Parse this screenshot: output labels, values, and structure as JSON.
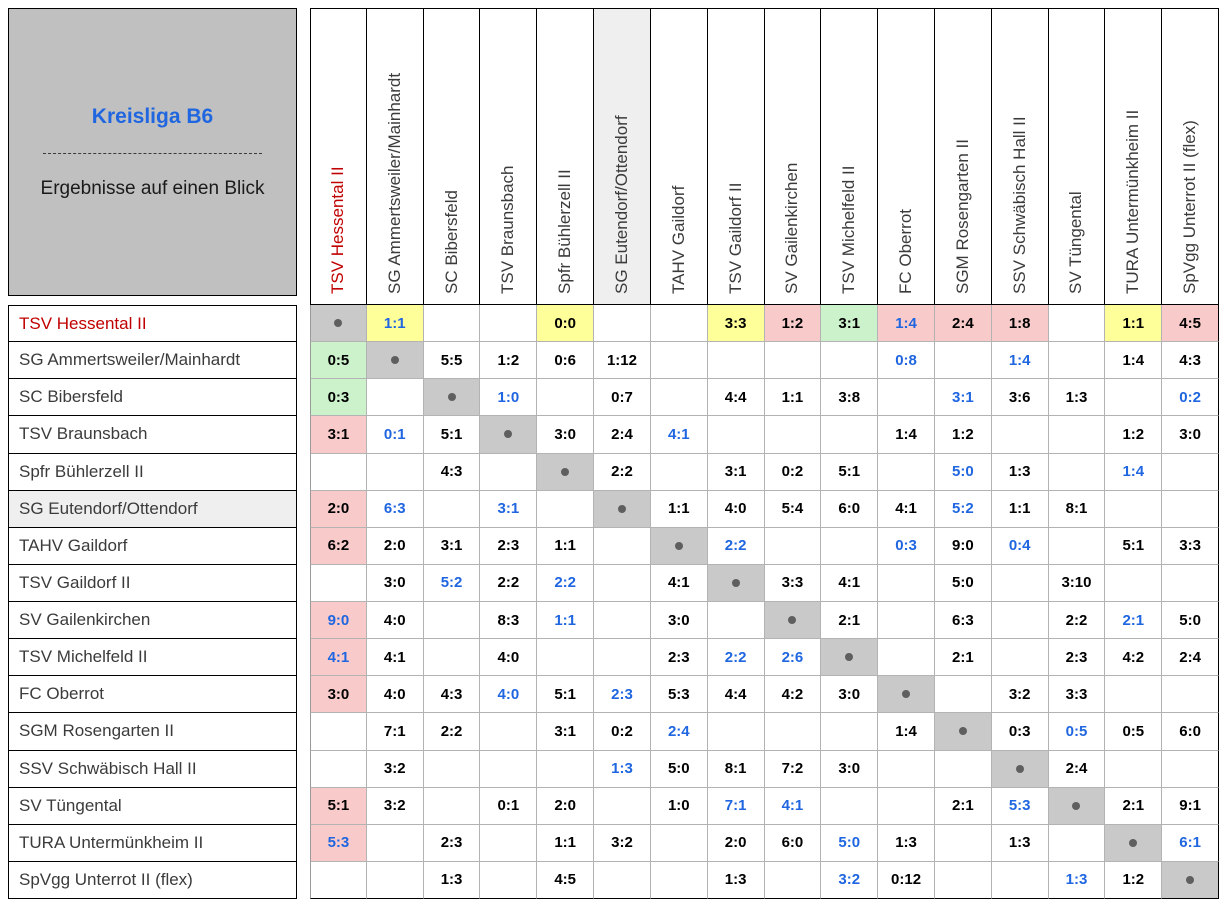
{
  "title_box": {
    "title": "Kreisliga B6",
    "subtitle": "Ergebnisse auf einen Blick"
  },
  "selected_team": "TSV Hessental II",
  "diag_dot": "•",
  "colors": {
    "accent_blue": "#1f66e0",
    "team_red": "#c00000",
    "draw_yellow": "#feff99",
    "win_green": "#ccf2cc",
    "loss_pink": "#f8caca",
    "diag_gray": "#c9c9c9",
    "header_gray": "#c0c0c0",
    "shade_gray": "#efefef"
  },
  "teams": [
    {
      "name": "TSV Hessental II",
      "flag": "sel"
    },
    {
      "name": "SG Ammertsweiler/Mainhardt",
      "flag": ""
    },
    {
      "name": "SC Bibersfeld",
      "flag": ""
    },
    {
      "name": "TSV Braunsbach",
      "flag": ""
    },
    {
      "name": "Spfr Bühlerzell II",
      "flag": ""
    },
    {
      "name": "SG Eutendorf/Ottendorf",
      "flag": "shade"
    },
    {
      "name": "TAHV Gaildorf",
      "flag": ""
    },
    {
      "name": "TSV Gaildorf II",
      "flag": ""
    },
    {
      "name": "SV Gailenkirchen",
      "flag": ""
    },
    {
      "name": "TSV Michelfeld II",
      "flag": ""
    },
    {
      "name": "FC Oberrot",
      "flag": ""
    },
    {
      "name": "SGM Rosengarten II",
      "flag": ""
    },
    {
      "name": "SSV Schwäbisch Hall II",
      "flag": ""
    },
    {
      "name": "SV Tüngental",
      "flag": ""
    },
    {
      "name": "TURA Untermünkheim II",
      "flag": ""
    },
    {
      "name": "SpVgg Unterrot II (flex)",
      "flag": ""
    }
  ],
  "matrix": [
    [
      {
        "d": 1
      },
      {
        "s": "1:1",
        "bg": "y",
        "fg": "b"
      },
      null,
      null,
      {
        "s": "0:0",
        "bg": "y"
      },
      null,
      null,
      {
        "s": "3:3",
        "bg": "y"
      },
      {
        "s": "1:2",
        "bg": "p"
      },
      {
        "s": "3:1",
        "bg": "g"
      },
      {
        "s": "1:4",
        "bg": "p",
        "fg": "b"
      },
      {
        "s": "2:4",
        "bg": "p"
      },
      {
        "s": "1:8",
        "bg": "p"
      },
      null,
      {
        "s": "1:1",
        "bg": "y"
      },
      {
        "s": "4:5",
        "bg": "p"
      }
    ],
    [
      {
        "s": "0:5",
        "bg": "g"
      },
      {
        "d": 1
      },
      {
        "s": "5:5"
      },
      {
        "s": "1:2"
      },
      {
        "s": "0:6"
      },
      {
        "s": "1:12"
      },
      null,
      null,
      null,
      null,
      {
        "s": "0:8",
        "fg": "b"
      },
      null,
      {
        "s": "1:4",
        "fg": "b"
      },
      null,
      {
        "s": "1:4"
      },
      {
        "s": "4:3"
      }
    ],
    [
      {
        "s": "0:3",
        "bg": "g"
      },
      null,
      {
        "d": 1
      },
      {
        "s": "1:0",
        "fg": "b"
      },
      null,
      {
        "s": "0:7"
      },
      null,
      {
        "s": "4:4"
      },
      {
        "s": "1:1"
      },
      {
        "s": "3:8"
      },
      null,
      {
        "s": "3:1",
        "fg": "b"
      },
      {
        "s": "3:6"
      },
      {
        "s": "1:3"
      },
      null,
      {
        "s": "0:2",
        "fg": "b"
      }
    ],
    [
      {
        "s": "3:1",
        "bg": "p"
      },
      {
        "s": "0:1",
        "fg": "b"
      },
      {
        "s": "5:1"
      },
      {
        "d": 1
      },
      {
        "s": "3:0"
      },
      {
        "s": "2:4"
      },
      {
        "s": "4:1",
        "fg": "b"
      },
      null,
      null,
      null,
      {
        "s": "1:4"
      },
      {
        "s": "1:2"
      },
      null,
      null,
      {
        "s": "1:2"
      },
      {
        "s": "3:0"
      }
    ],
    [
      null,
      null,
      {
        "s": "4:3"
      },
      null,
      {
        "d": 1
      },
      {
        "s": "2:2"
      },
      null,
      {
        "s": "3:1"
      },
      {
        "s": "0:2"
      },
      {
        "s": "5:1"
      },
      null,
      {
        "s": "5:0",
        "fg": "b"
      },
      {
        "s": "1:3"
      },
      null,
      {
        "s": "1:4",
        "fg": "b"
      },
      null
    ],
    [
      {
        "s": "2:0",
        "bg": "p"
      },
      {
        "s": "6:3",
        "fg": "b"
      },
      null,
      {
        "s": "3:1",
        "fg": "b"
      },
      null,
      {
        "d": 1
      },
      {
        "s": "1:1"
      },
      {
        "s": "4:0"
      },
      {
        "s": "5:4"
      },
      {
        "s": "6:0"
      },
      {
        "s": "4:1"
      },
      {
        "s": "5:2",
        "fg": "b"
      },
      {
        "s": "1:1"
      },
      {
        "s": "8:1"
      },
      null,
      null
    ],
    [
      {
        "s": "6:2",
        "bg": "p"
      },
      {
        "s": "2:0"
      },
      {
        "s": "3:1"
      },
      {
        "s": "2:3"
      },
      {
        "s": "1:1"
      },
      null,
      {
        "d": 1
      },
      {
        "s": "2:2",
        "fg": "b"
      },
      null,
      null,
      {
        "s": "0:3",
        "fg": "b"
      },
      {
        "s": "9:0"
      },
      {
        "s": "0:4",
        "fg": "b"
      },
      null,
      {
        "s": "5:1"
      },
      {
        "s": "3:3"
      }
    ],
    [
      null,
      {
        "s": "3:0"
      },
      {
        "s": "5:2",
        "fg": "b"
      },
      {
        "s": "2:2"
      },
      {
        "s": "2:2",
        "fg": "b"
      },
      null,
      {
        "s": "4:1"
      },
      {
        "d": 1
      },
      {
        "s": "3:3"
      },
      {
        "s": "4:1"
      },
      null,
      {
        "s": "5:0"
      },
      null,
      {
        "s": "3:10"
      },
      null,
      null
    ],
    [
      {
        "s": "9:0",
        "bg": "p",
        "fg": "b"
      },
      {
        "s": "4:0"
      },
      null,
      {
        "s": "8:3"
      },
      {
        "s": "1:1",
        "fg": "b"
      },
      null,
      {
        "s": "3:0"
      },
      null,
      {
        "d": 1
      },
      {
        "s": "2:1"
      },
      null,
      {
        "s": "6:3"
      },
      null,
      {
        "s": "2:2"
      },
      {
        "s": "2:1",
        "fg": "b"
      },
      {
        "s": "5:0"
      }
    ],
    [
      {
        "s": "4:1",
        "bg": "p",
        "fg": "b"
      },
      {
        "s": "4:1"
      },
      null,
      {
        "s": "4:0"
      },
      null,
      null,
      {
        "s": "2:3"
      },
      {
        "s": "2:2",
        "fg": "b"
      },
      {
        "s": "2:6",
        "fg": "b"
      },
      {
        "d": 1
      },
      null,
      {
        "s": "2:1"
      },
      null,
      {
        "s": "2:3"
      },
      {
        "s": "4:2"
      },
      {
        "s": "2:4"
      }
    ],
    [
      {
        "s": "3:0",
        "bg": "p"
      },
      {
        "s": "4:0"
      },
      {
        "s": "4:3"
      },
      {
        "s": "4:0",
        "fg": "b"
      },
      {
        "s": "5:1"
      },
      {
        "s": "2:3",
        "fg": "b"
      },
      {
        "s": "5:3"
      },
      {
        "s": "4:4"
      },
      {
        "s": "4:2"
      },
      {
        "s": "3:0"
      },
      {
        "d": 1
      },
      null,
      {
        "s": "3:2"
      },
      {
        "s": "3:3"
      },
      null,
      null
    ],
    [
      null,
      {
        "s": "7:1"
      },
      {
        "s": "2:2"
      },
      null,
      {
        "s": "3:1"
      },
      {
        "s": "0:2"
      },
      {
        "s": "2:4",
        "fg": "b"
      },
      null,
      null,
      null,
      {
        "s": "1:4"
      },
      {
        "d": 1
      },
      {
        "s": "0:3"
      },
      {
        "s": "0:5",
        "fg": "b"
      },
      {
        "s": "0:5"
      },
      {
        "s": "6:0"
      }
    ],
    [
      null,
      {
        "s": "3:2"
      },
      null,
      null,
      null,
      {
        "s": "1:3",
        "fg": "b"
      },
      {
        "s": "5:0"
      },
      {
        "s": "8:1"
      },
      {
        "s": "7:2"
      },
      {
        "s": "3:0"
      },
      null,
      null,
      {
        "d": 1
      },
      {
        "s": "2:4"
      },
      null,
      null
    ],
    [
      {
        "s": "5:1",
        "bg": "p"
      },
      {
        "s": "3:2"
      },
      null,
      {
        "s": "0:1"
      },
      {
        "s": "2:0"
      },
      null,
      {
        "s": "1:0"
      },
      {
        "s": "7:1",
        "fg": "b"
      },
      {
        "s": "4:1",
        "fg": "b"
      },
      null,
      null,
      {
        "s": "2:1"
      },
      {
        "s": "5:3",
        "fg": "b"
      },
      {
        "d": 1
      },
      {
        "s": "2:1"
      },
      {
        "s": "9:1"
      }
    ],
    [
      {
        "s": "5:3",
        "bg": "p",
        "fg": "b"
      },
      null,
      {
        "s": "2:3"
      },
      null,
      {
        "s": "1:1"
      },
      {
        "s": "3:2"
      },
      null,
      {
        "s": "2:0"
      },
      {
        "s": "6:0"
      },
      {
        "s": "5:0",
        "fg": "b"
      },
      {
        "s": "1:3"
      },
      null,
      {
        "s": "1:3"
      },
      null,
      {
        "d": 1
      },
      {
        "s": "6:1",
        "fg": "b"
      }
    ],
    [
      null,
      null,
      {
        "s": "1:3"
      },
      null,
      {
        "s": "4:5"
      },
      null,
      null,
      {
        "s": "1:3"
      },
      null,
      {
        "s": "3:2",
        "fg": "b"
      },
      {
        "s": "0:12"
      },
      null,
      null,
      {
        "s": "1:3",
        "fg": "b"
      },
      {
        "s": "1:2"
      },
      {
        "d": 1
      }
    ]
  ]
}
